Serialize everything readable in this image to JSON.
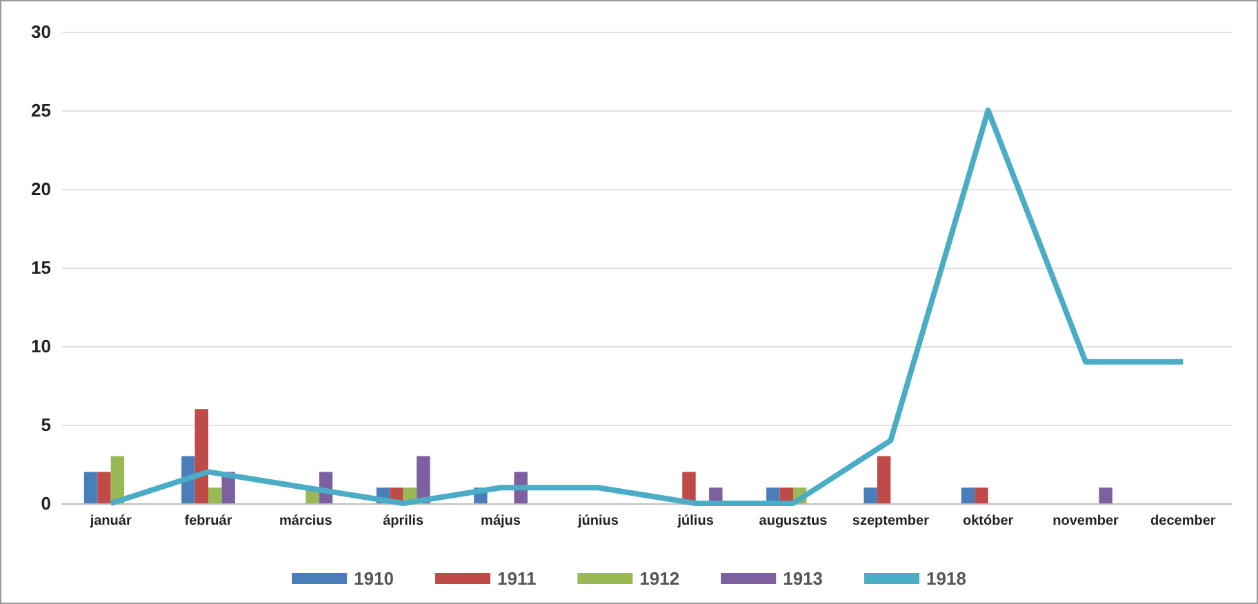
{
  "chart_data": {
    "type": "bar",
    "categories": [
      "január",
      "február",
      "március",
      "április",
      "május",
      "június",
      "július",
      "augusztus",
      "szeptember",
      "október",
      "november",
      "december"
    ],
    "series": [
      {
        "name": "1910",
        "color": "#4a7ebb",
        "values": [
          2,
          3,
          null,
          1,
          1,
          null,
          null,
          1,
          1,
          1,
          null,
          null
        ]
      },
      {
        "name": "1911",
        "color": "#be4b48",
        "values": [
          2,
          6,
          null,
          1,
          null,
          null,
          2,
          1,
          3,
          1,
          null,
          null
        ]
      },
      {
        "name": "1912",
        "color": "#98b954",
        "values": [
          3,
          1,
          1,
          1,
          null,
          null,
          null,
          1,
          null,
          null,
          null,
          null
        ]
      },
      {
        "name": "1913",
        "color": "#7d60a0",
        "values": [
          null,
          2,
          2,
          3,
          2,
          null,
          1,
          null,
          null,
          null,
          1,
          null
        ]
      },
      {
        "name": "1918",
        "type": "line",
        "color": "#4bacc6",
        "values": [
          0,
          2,
          1,
          0,
          1,
          1,
          0,
          0,
          4,
          25,
          9,
          9
        ]
      }
    ],
    "ylim": [
      0,
      30
    ],
    "yticks": [
      0,
      5,
      10,
      15,
      20,
      25,
      30
    ],
    "grid": "y",
    "legend": "bottom",
    "marker": "none"
  }
}
